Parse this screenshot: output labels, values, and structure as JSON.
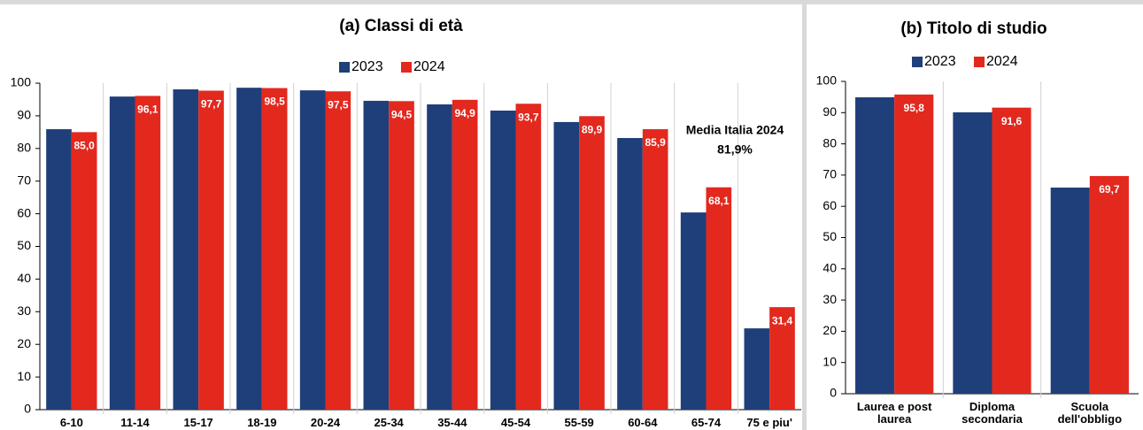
{
  "chart_data": [
    {
      "type": "bar",
      "title": "(a) Classi di età",
      "categories": [
        "6-10",
        "11-14",
        "15-17",
        "18-19",
        "20-24",
        "25-34",
        "35-44",
        "45-54",
        "55-59",
        "60-64",
        "65-74",
        "75 e piu'"
      ],
      "series": [
        {
          "name": "2023",
          "color": "#1f3f7a",
          "values": [
            85.9,
            95.9,
            98.1,
            98.6,
            97.8,
            94.6,
            93.5,
            91.6,
            88.1,
            83.2,
            60.4,
            24.9
          ]
        },
        {
          "name": "2024",
          "color": "#e3281e",
          "values": [
            85.0,
            96.1,
            97.7,
            98.5,
            97.5,
            94.5,
            94.9,
            93.7,
            89.9,
            85.9,
            68.1,
            31.4
          ],
          "value_labels": [
            "85,0",
            "96,1",
            "97,7",
            "98,5",
            "97,5",
            "94,5",
            "94,9",
            "93,7",
            "89,9",
            "85,9",
            "68,1",
            "31,4"
          ]
        }
      ],
      "ylim": [
        0,
        100
      ],
      "yticks": [
        0,
        10,
        20,
        30,
        40,
        50,
        60,
        70,
        80,
        90,
        100
      ],
      "annotations": [
        "Media Italia 2024",
        "81,9%"
      ],
      "legend": "top"
    },
    {
      "type": "bar",
      "title": "(b) Titolo di studio",
      "categories": [
        "Laurea e post laurea",
        "Diploma secondaria",
        "Scuola dell'obbligo"
      ],
      "series": [
        {
          "name": "2023",
          "color": "#1f3f7a",
          "values": [
            94.9,
            90.1,
            66.0
          ]
        },
        {
          "name": "2024",
          "color": "#e3281e",
          "values": [
            95.8,
            91.6,
            69.7
          ],
          "value_labels": [
            "95,8",
            "91,6",
            "69,7"
          ]
        }
      ],
      "ylim": [
        0,
        100
      ],
      "yticks": [
        0,
        10,
        20,
        30,
        40,
        50,
        60,
        70,
        80,
        90,
        100
      ],
      "legend": "top"
    }
  ]
}
